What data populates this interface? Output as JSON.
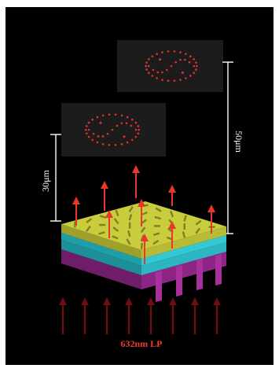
{
  "figure": {
    "labels": {
      "distance_near": "30μm",
      "distance_far": "50μm",
      "illumination": "632nm LP"
    },
    "colors": {
      "background": "#000000",
      "frame": "#ffffff",
      "top_layer": "#c9cc3c",
      "layer_cyan": "#2ab7c4",
      "layer_purple": "#9a2a8e",
      "emitted_arrows": "#e8382c",
      "incident_arrows": "#6a0e0e",
      "focal_dots": "#e0332b",
      "scale_lines": "#ffffff",
      "label_red": "#ee3b2e"
    },
    "icons": [
      "yin-yang-dot-pattern",
      "up-arrow"
    ]
  }
}
